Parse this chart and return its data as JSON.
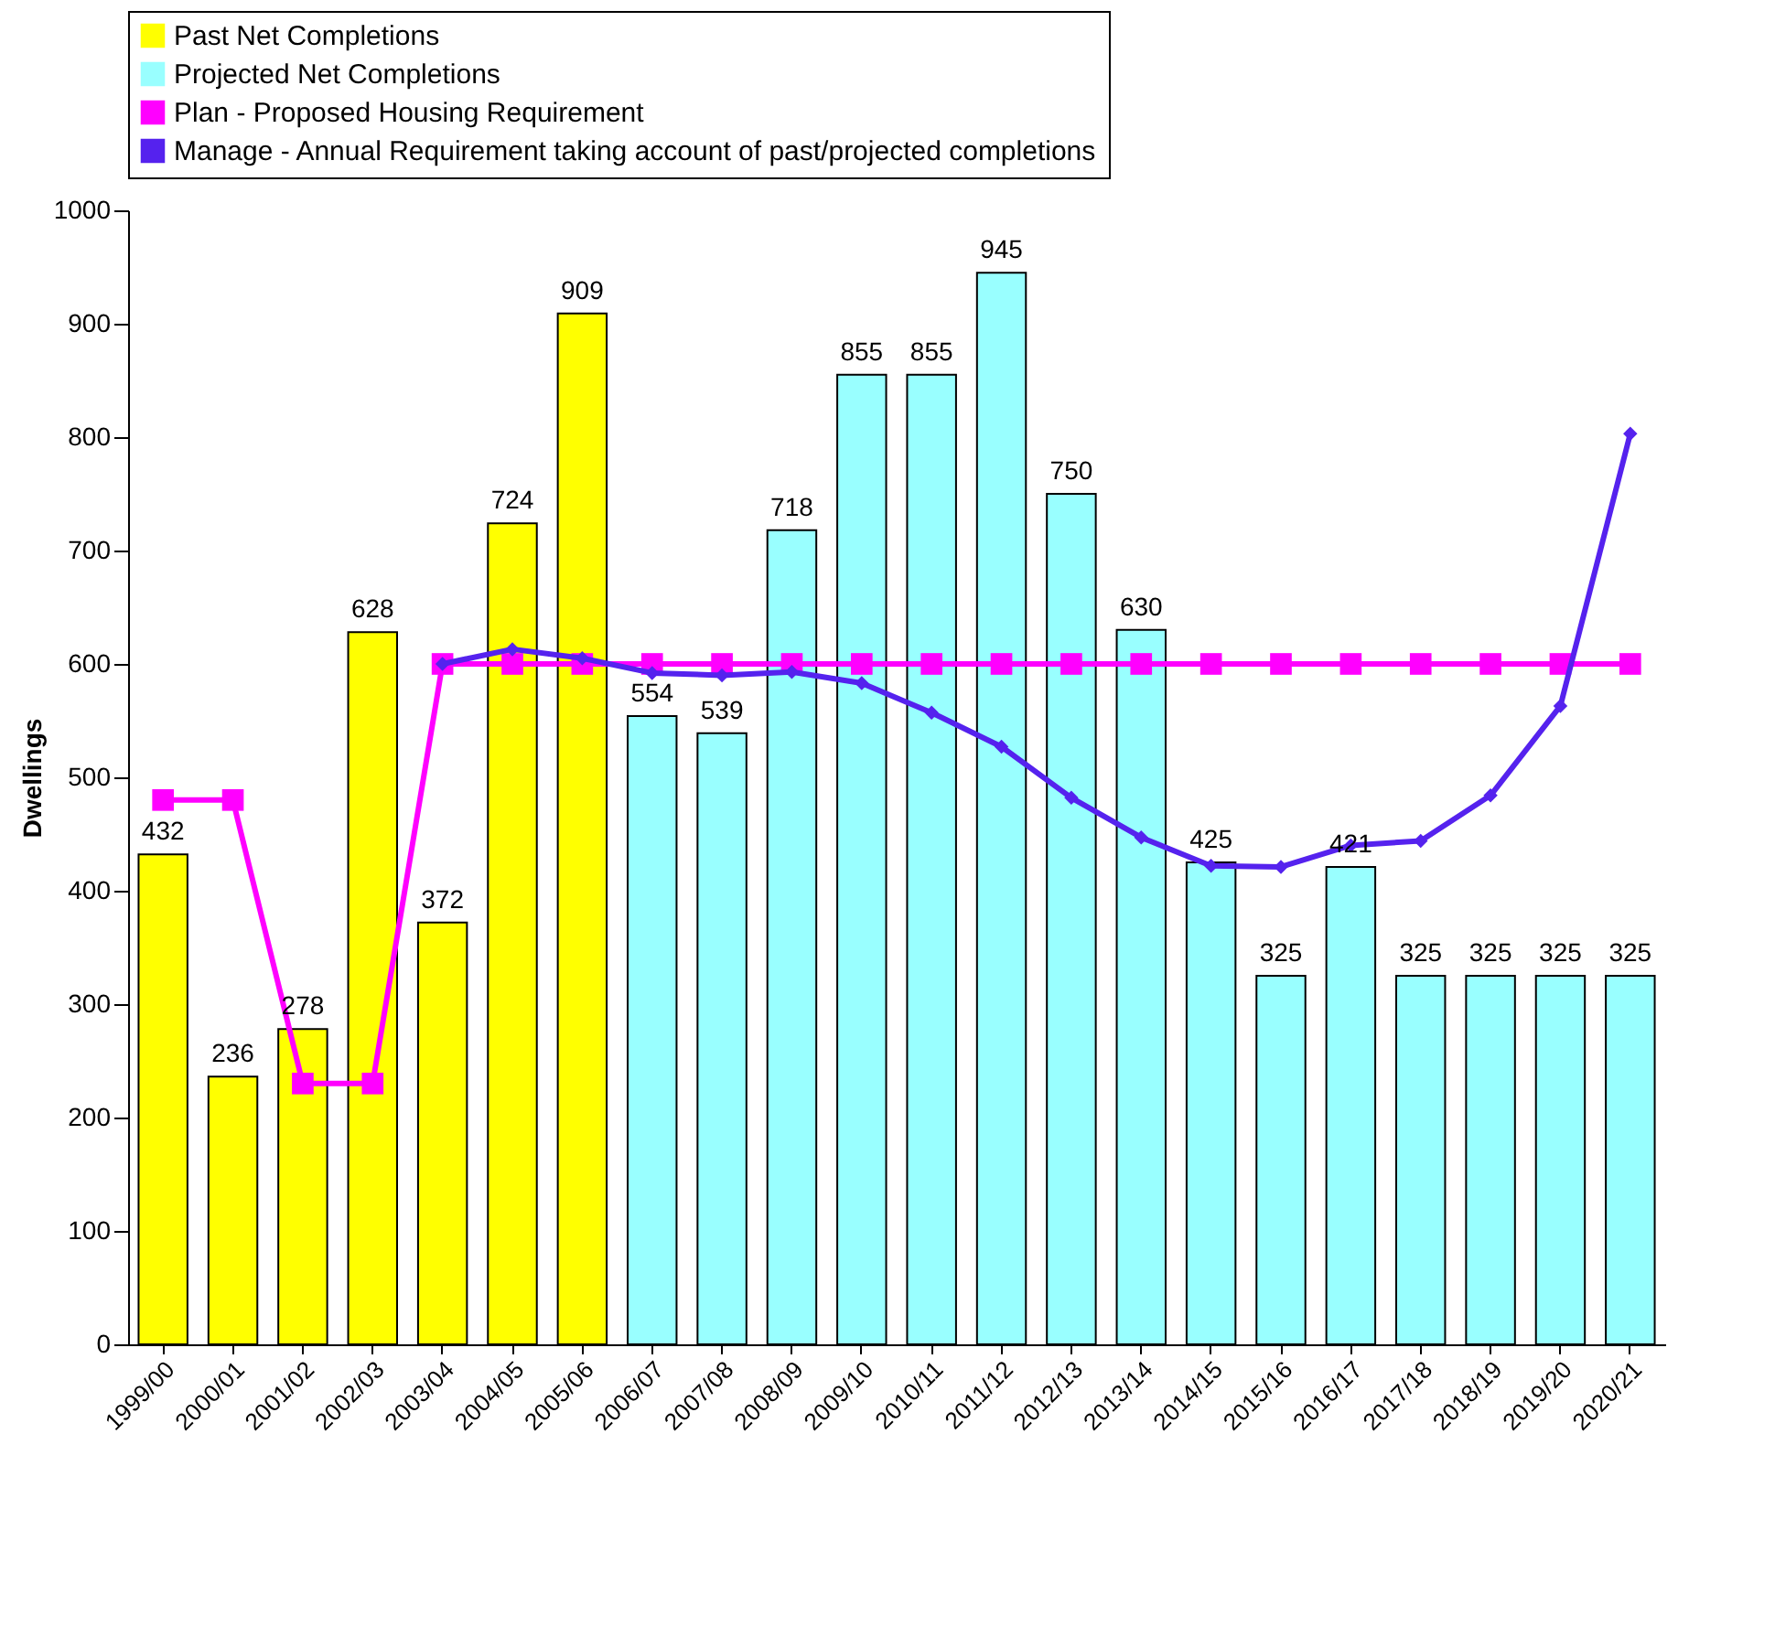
{
  "chart_data": {
    "type": "bar",
    "ylabel": "Dwellings",
    "categories": [
      "1999/00",
      "2000/01",
      "2001/02",
      "2002/03",
      "2003/04",
      "2004/05",
      "2005/06",
      "2006/07",
      "2007/08",
      "2008/09",
      "2009/10",
      "2010/11",
      "2011/12",
      "2012/13",
      "2013/14",
      "2014/15",
      "2015/16",
      "2016/17",
      "2017/18",
      "2018/19",
      "2019/20",
      "2020/21"
    ],
    "series": [
      {
        "name": "Past Net Completions",
        "color": "#ffff00",
        "values": [
          432,
          236,
          278,
          628,
          372,
          724,
          909,
          null,
          null,
          null,
          null,
          null,
          null,
          null,
          null,
          null,
          null,
          null,
          null,
          null,
          null,
          null
        ],
        "value_labels": [
          "432",
          "236",
          "278",
          "628",
          "372",
          "724",
          "909",
          null,
          null,
          null,
          null,
          null,
          null,
          null,
          null,
          null,
          null,
          null,
          null,
          null,
          null,
          null
        ]
      },
      {
        "name": "Projected Net Completions",
        "color": "#99ffff",
        "values": [
          null,
          null,
          null,
          null,
          null,
          null,
          null,
          554,
          539,
          718,
          855,
          855,
          945,
          750,
          630,
          425,
          325,
          421,
          325,
          325,
          325,
          325
        ],
        "value_labels": [
          null,
          null,
          null,
          null,
          null,
          null,
          null,
          "554",
          "539",
          "718",
          "855",
          "855",
          "945",
          "750",
          "630",
          "425",
          "325",
          "421",
          "325",
          "325",
          "325",
          "325"
        ]
      },
      {
        "name": "Plan - Proposed Housing Requirement",
        "type": "line",
        "marker": "square",
        "color": "#ff00ff",
        "values": [
          480,
          480,
          230,
          230,
          600,
          600,
          600,
          600,
          600,
          600,
          600,
          600,
          600,
          600,
          600,
          600,
          600,
          600,
          600,
          600,
          600,
          600
        ]
      },
      {
        "name": "Manage - Annual Requirement taking account of past/projected completions",
        "type": "line",
        "marker": "diamond",
        "color": "#5522ee",
        "values": [
          null,
          null,
          null,
          null,
          600,
          613,
          605,
          592,
          590,
          593,
          583,
          557,
          527,
          482,
          447,
          422,
          421,
          440,
          444,
          484,
          563,
          803
        ]
      }
    ],
    "ylim": [
      0,
      1000
    ],
    "yticks": [
      0,
      100,
      200,
      300,
      400,
      500,
      600,
      700,
      800,
      900,
      1000
    ],
    "grid": false,
    "legend": "top"
  }
}
